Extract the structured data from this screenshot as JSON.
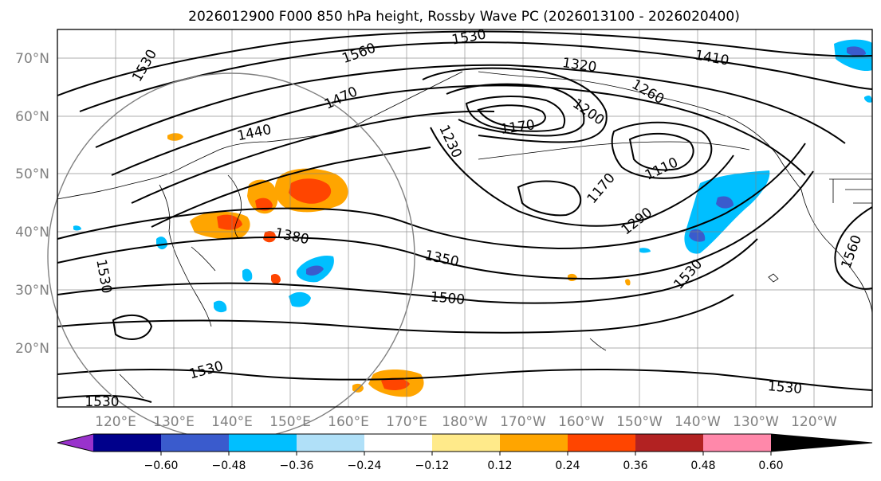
{
  "title": "2026012900 F000 850 hPa height, Rossby Wave PC (2026013100 - 2026020400)",
  "latitude_labels": [
    "70°N",
    "60°N",
    "50°N",
    "40°N",
    "30°N",
    "20°N"
  ],
  "longitude_labels": [
    "120°E",
    "130°E",
    "140°E",
    "150°E",
    "160°E",
    "170°E",
    "180°W",
    "170°W",
    "160°W",
    "150°W",
    "140°W",
    "130°W",
    "120°W"
  ],
  "contour_labels": [
    {
      "text": "1530",
      "region": "top-center"
    },
    {
      "text": "1560",
      "region": "upper-center"
    },
    {
      "text": "1530",
      "region": "upper-left"
    },
    {
      "text": "1320",
      "region": "upper-center-right"
    },
    {
      "text": "1410",
      "region": "upper-right"
    },
    {
      "text": "1260",
      "region": "upper-center-right"
    },
    {
      "text": "1470",
      "region": "upper-left-center"
    },
    {
      "text": "1200",
      "region": "upper-center"
    },
    {
      "text": "1440",
      "region": "left-center"
    },
    {
      "text": "1170",
      "region": "center"
    },
    {
      "text": "1230",
      "region": "center"
    },
    {
      "text": "1110",
      "region": "center-right"
    },
    {
      "text": "1170",
      "region": "center-right"
    },
    {
      "text": "1290",
      "region": "center-right"
    },
    {
      "text": "1380",
      "region": "left-center"
    },
    {
      "text": "1350",
      "region": "center"
    },
    {
      "text": "1530",
      "region": "left"
    },
    {
      "text": "1530",
      "region": "right"
    },
    {
      "text": "1560",
      "region": "far-right"
    },
    {
      "text": "1500",
      "region": "center-low"
    },
    {
      "text": "1530",
      "region": "lower-left"
    },
    {
      "text": "1530",
      "region": "lower-right"
    },
    {
      "text": "1530",
      "region": "bottom-left"
    }
  ],
  "colorbar": {
    "tick_labels": [
      "−0.60",
      "−0.48",
      "−0.36",
      "−0.24",
      "−0.12",
      "0.12",
      "0.24",
      "0.36",
      "0.48",
      "0.60"
    ],
    "colors": [
      "#9932cc",
      "#00008b",
      "#3a5bcd",
      "#00bfff",
      "#b0e0f8",
      "#ffffff",
      "#ffea8a",
      "#ffa500",
      "#ff4500",
      "#b22222",
      "#ff88aa"
    ]
  },
  "colors": {
    "contour": "#000000",
    "grid": "#808080",
    "axis_label": "#808080"
  }
}
